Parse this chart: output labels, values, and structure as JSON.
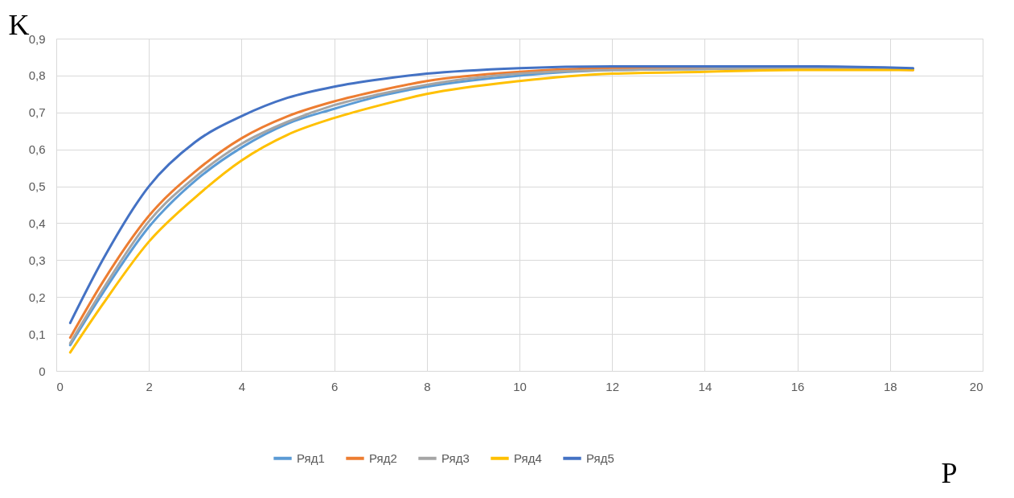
{
  "chart_data": {
    "type": "line",
    "xlabel": "P",
    "ylabel": "K",
    "x": [
      0.3,
      1,
      2,
      3,
      4,
      5,
      6,
      7,
      8,
      10,
      12,
      14,
      16,
      18.5
    ],
    "series": [
      {
        "name": "Ряд1",
        "color": "#5b9bd5",
        "values": [
          0.07,
          0.21,
          0.39,
          0.515,
          0.605,
          0.67,
          0.71,
          0.745,
          0.77,
          0.8,
          0.815,
          0.818,
          0.82,
          0.818
        ]
      },
      {
        "name": "Ряд2",
        "color": "#ed7d31",
        "values": [
          0.09,
          0.24,
          0.42,
          0.54,
          0.63,
          0.69,
          0.73,
          0.76,
          0.785,
          0.81,
          0.82,
          0.82,
          0.82,
          0.815
        ]
      },
      {
        "name": "Ряд3",
        "color": "#a5a5a5",
        "values": [
          0.075,
          0.22,
          0.405,
          0.525,
          0.615,
          0.675,
          0.72,
          0.75,
          0.775,
          0.805,
          0.815,
          0.818,
          0.82,
          0.817
        ]
      },
      {
        "name": "Ряд4",
        "color": "#ffc000",
        "values": [
          0.05,
          0.18,
          0.35,
          0.47,
          0.57,
          0.64,
          0.685,
          0.72,
          0.75,
          0.785,
          0.805,
          0.81,
          0.815,
          0.815
        ]
      },
      {
        "name": "Ряд5",
        "color": "#4472c4",
        "values": [
          0.13,
          0.3,
          0.5,
          0.62,
          0.69,
          0.74,
          0.77,
          0.79,
          0.805,
          0.82,
          0.825,
          0.825,
          0.825,
          0.82
        ]
      }
    ],
    "xlim": [
      0,
      20
    ],
    "xticks": [
      0,
      2,
      4,
      6,
      8,
      10,
      12,
      14,
      16,
      18,
      20
    ],
    "ylim": [
      0,
      0.9
    ],
    "yticks": [
      0,
      {
        "value": 0.1,
        "label": "0,1"
      },
      {
        "value": 0.2,
        "label": "0,2"
      },
      {
        "value": 0.3,
        "label": "0,3"
      },
      {
        "value": 0.4,
        "label": "0,4"
      },
      {
        "value": 0.5,
        "label": "0,5"
      },
      {
        "value": 0.6,
        "label": "0,6"
      },
      {
        "value": 0.7,
        "label": "0,7"
      },
      {
        "value": 0.8,
        "label": "0,8"
      },
      {
        "value": 0.9,
        "label": "0,9"
      }
    ],
    "grid": true,
    "legend": "bottom",
    "line_style": "solid"
  }
}
